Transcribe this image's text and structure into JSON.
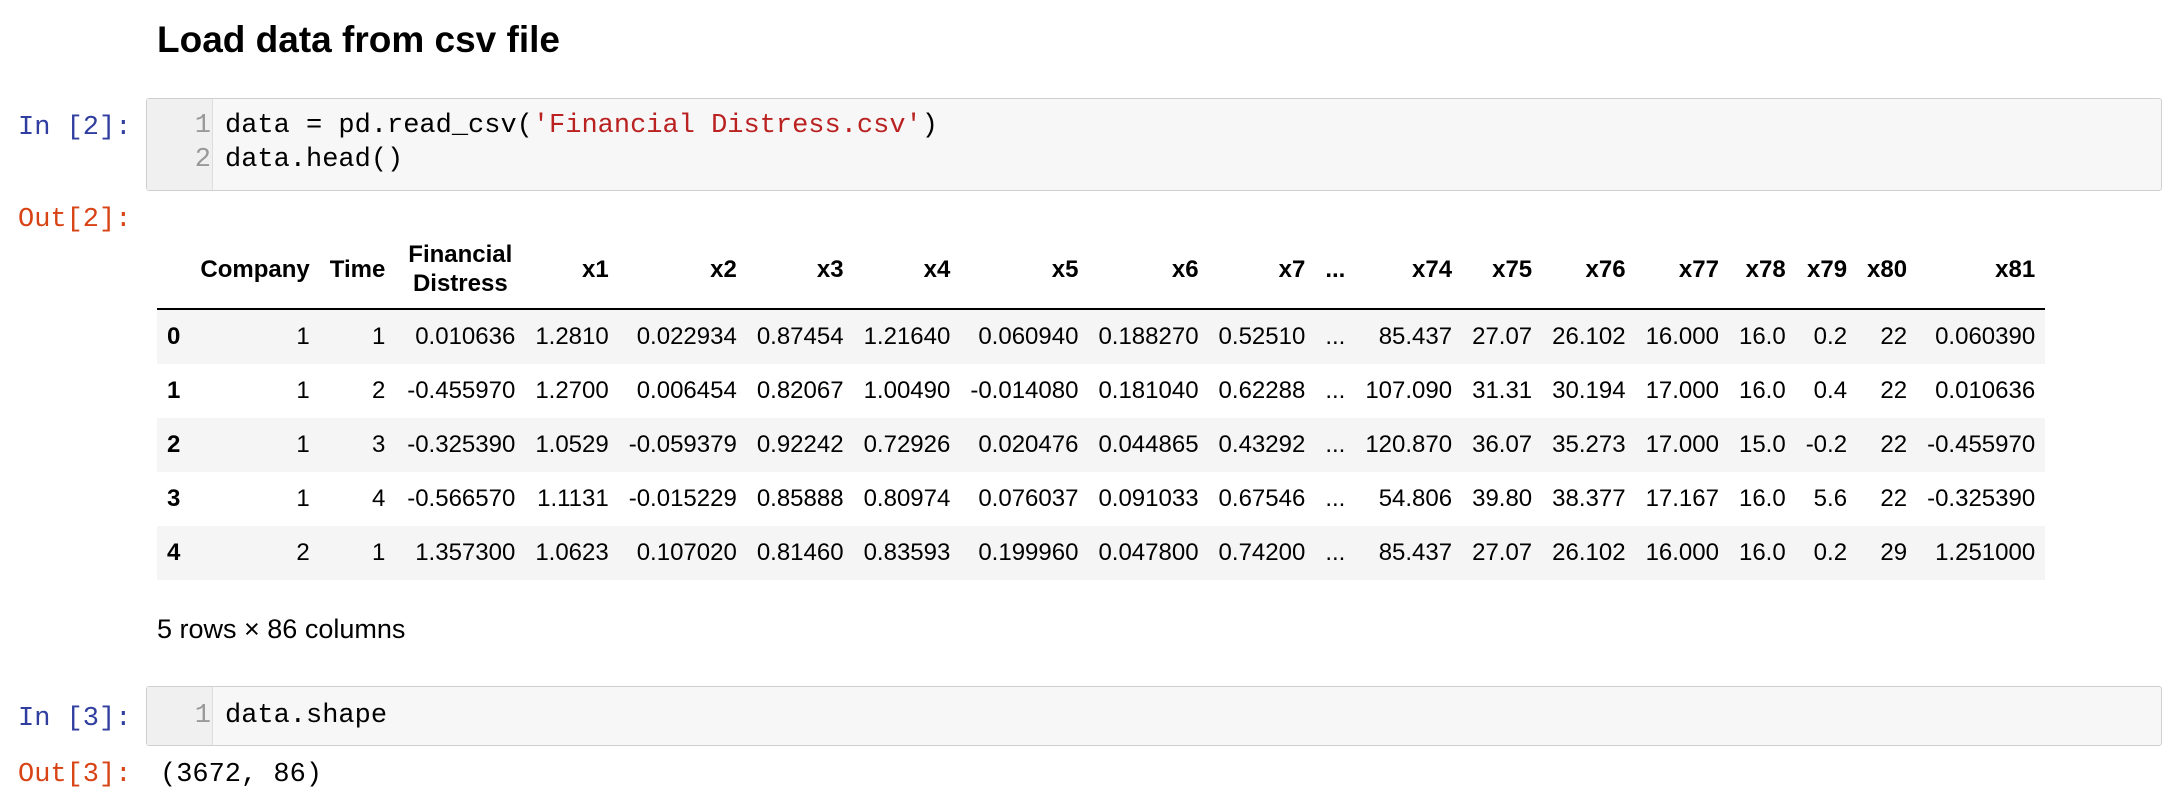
{
  "heading": "Load data from csv file",
  "cell2": {
    "in_prompt": "In [2]:",
    "out_prompt": "Out[2]:",
    "lines": [
      {
        "num": "1",
        "code_before": "data = pd.read_csv(",
        "string": "'Financial Distress.csv'",
        "code_after": ")"
      },
      {
        "num": "2",
        "code_before": "data.head()",
        "string": "",
        "code_after": ""
      }
    ]
  },
  "dataframe": {
    "columns": [
      "",
      "Company",
      "Time",
      "Financial Distress",
      "x1",
      "x2",
      "x3",
      "x4",
      "x5",
      "x6",
      "x7",
      "...",
      "x74",
      "x75",
      "x76",
      "x77",
      "x78",
      "x79",
      "x80",
      "x81"
    ],
    "rows": [
      [
        "0",
        "1",
        "1",
        "0.010636",
        "1.2810",
        "0.022934",
        "0.87454",
        "1.21640",
        "0.060940",
        "0.188270",
        "0.52510",
        "...",
        "85.437",
        "27.07",
        "26.102",
        "16.000",
        "16.0",
        "0.2",
        "22",
        "0.060390"
      ],
      [
        "1",
        "1",
        "2",
        "-0.455970",
        "1.2700",
        "0.006454",
        "0.82067",
        "1.00490",
        "-0.014080",
        "0.181040",
        "0.62288",
        "...",
        "107.090",
        "31.31",
        "30.194",
        "17.000",
        "16.0",
        "0.4",
        "22",
        "0.010636"
      ],
      [
        "2",
        "1",
        "3",
        "-0.325390",
        "1.0529",
        "-0.059379",
        "0.92242",
        "0.72926",
        "0.020476",
        "0.044865",
        "0.43292",
        "...",
        "120.870",
        "36.07",
        "35.273",
        "17.000",
        "15.0",
        "-0.2",
        "22",
        "-0.455970"
      ],
      [
        "3",
        "1",
        "4",
        "-0.566570",
        "1.1131",
        "-0.015229",
        "0.85888",
        "0.80974",
        "0.076037",
        "0.091033",
        "0.67546",
        "...",
        "54.806",
        "39.80",
        "38.377",
        "17.167",
        "16.0",
        "5.6",
        "22",
        "-0.325390"
      ],
      [
        "4",
        "2",
        "1",
        "1.357300",
        "1.0623",
        "0.107020",
        "0.81460",
        "0.83593",
        "0.199960",
        "0.047800",
        "0.74200",
        "...",
        "85.437",
        "27.07",
        "26.102",
        "16.000",
        "16.0",
        "0.2",
        "29",
        "1.251000"
      ]
    ],
    "summary": "5 rows × 86 columns"
  },
  "cell3": {
    "in_prompt": "In [3]:",
    "out_prompt": "Out[3]:",
    "lines": [
      {
        "num": "1",
        "code": "data.shape"
      }
    ],
    "output": "(3672, 86)"
  }
}
